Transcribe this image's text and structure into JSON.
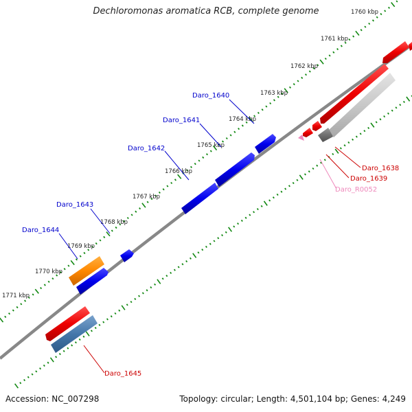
{
  "title": "Dechloromonas aromatica RCB, complete genome",
  "footer": {
    "accession": "Accession: NC_007298",
    "summary": "Topology: circular; Length: 4,501,104 bp; Genes: 4,249"
  },
  "colors": {
    "backbone": "#888888",
    "ticks": "#118811",
    "gene_forward": "#0000ee",
    "gene_reverse": "#ee0000",
    "rna": "#ee88bb",
    "orange_feature": "#ff8800",
    "steel_feature": "#4477aa",
    "grey_feature": "#c8c8c8",
    "label_forward": "#0000cc",
    "label_reverse": "#cc0000",
    "label_rna": "#ee88bb"
  },
  "scale": {
    "labels": [
      "1760 kbp",
      "1761 kbp",
      "1762 kbp",
      "1763 kbp",
      "1764 kbp",
      "1765 kbp",
      "1766 kbp",
      "1767 kbp",
      "1768 kbp",
      "1769 kbp",
      "1770 kbp",
      "1771 kbp"
    ]
  },
  "genes_forward": [
    {
      "name": "Daro_1640"
    },
    {
      "name": "Daro_1641"
    },
    {
      "name": "Daro_1642"
    },
    {
      "name": "Daro_1643"
    },
    {
      "name": "Daro_1644"
    }
  ],
  "genes_reverse": [
    {
      "name": "Daro_1638"
    },
    {
      "name": "Daro_1639"
    },
    {
      "name": "Daro_R0052"
    },
    {
      "name": "Daro_1645"
    }
  ]
}
